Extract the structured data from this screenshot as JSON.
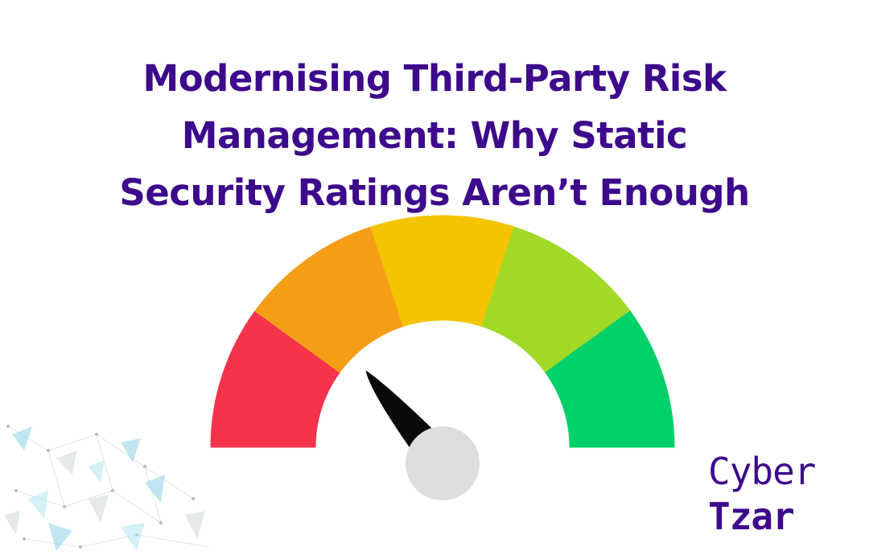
{
  "title": {
    "lines": [
      "Modernising Third-Party Risk",
      "Management: Why Static",
      "Security Ratings Aren’t Enough"
    ]
  },
  "gauge": {
    "segments": [
      "red",
      "orange",
      "yellow",
      "yellow-green",
      "green"
    ],
    "needle_level": 0.28
  },
  "logo": {
    "line1": "Cyber",
    "line2": "Tzar"
  },
  "colors": {
    "title": "#3d0a8c",
    "logo": "#3d0a8c",
    "red": "#f5334a",
    "orange": "#f69d18",
    "yellow": "#f5c400",
    "yellow_green": "#a1d926",
    "green": "#00d06a",
    "needle": "#0a0a0a",
    "hub": "#dddddd"
  }
}
